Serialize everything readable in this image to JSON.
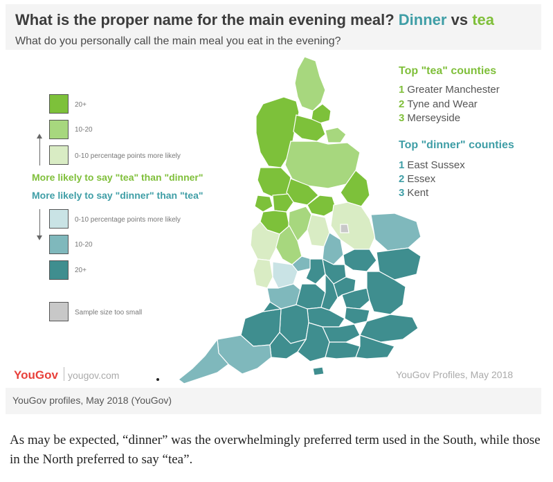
{
  "colors": {
    "tea_20plus": "#7dc13a",
    "tea_10_20": "#a7d77e",
    "tea_0_10": "#d9ecc4",
    "dinner_0_10": "#c9e3e5",
    "dinner_10_20": "#7fb8bc",
    "dinner_20plus": "#3f8e8f",
    "too_small": "#c8c8c8",
    "tea_text": "#7fbf3a",
    "dinner_text": "#3f9ea6",
    "yougov_red": "#e8403a"
  },
  "header": {
    "title_main": "What is the proper name for the main evening meal?",
    "title_dinner": "Dinner",
    "title_vs": "vs",
    "title_tea": "tea",
    "subtitle": "What do you personally call the main meal you eat in the evening?"
  },
  "legend": {
    "tea_items": [
      {
        "label": "20+",
        "color_key": "tea_20plus"
      },
      {
        "label": "10-20",
        "color_key": "tea_10_20"
      },
      {
        "label": "0-10 percentage points more likely",
        "color_key": "tea_0_10"
      }
    ],
    "tea_heading": "More likely to say  \"tea\" than \"dinner\"",
    "dinner_heading": "More likely to say  \"dinner\" than \"tea\"",
    "dinner_items": [
      {
        "label": "0-10 percentage points more likely",
        "color_key": "dinner_0_10"
      },
      {
        "label": "10-20",
        "color_key": "dinner_10_20"
      },
      {
        "label": "20+",
        "color_key": "dinner_20plus"
      }
    ],
    "too_small": "Sample size too small"
  },
  "rankings": {
    "tea_heading": "Top \"tea\" counties",
    "tea": [
      {
        "rank": "1",
        "name": "Greater Manchester"
      },
      {
        "rank": "2",
        "name": "Tyne and Wear"
      },
      {
        "rank": "3",
        "name": "Merseyside"
      }
    ],
    "dinner_heading": "Top \"dinner\" counties",
    "dinner": [
      {
        "rank": "1",
        "name": "East Sussex"
      },
      {
        "rank": "2",
        "name": "Essex"
      },
      {
        "rank": "3",
        "name": "Kent"
      }
    ]
  },
  "footer": {
    "logo": "YouGov",
    "site": "yougov.com",
    "credit": "YouGov Profiles, May 2018"
  },
  "caption": "YouGov profiles, May 2018 (YouGov)",
  "body_text": "As may be expected, “dinner” was the overwhelmingly preferred term used in the South, while those in the North preferred to say “tea”."
}
